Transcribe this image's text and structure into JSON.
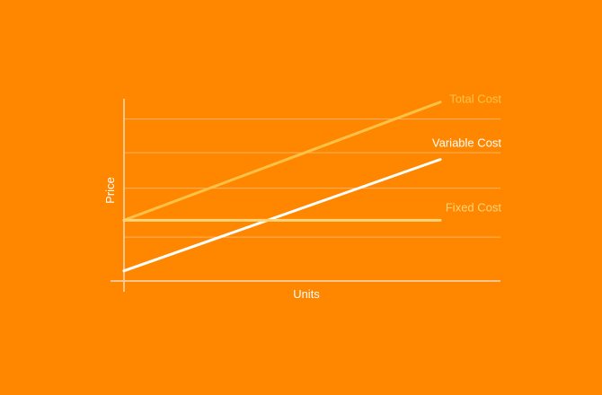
{
  "colors": {
    "background": "#FF8700",
    "grid": "#FFB266",
    "axis": "#FFC58F",
    "total_cost": "#FFC247",
    "variable_cost": "#FFFFFF",
    "fixed_cost": "#FFD479"
  },
  "chart_data": {
    "type": "line",
    "title": "",
    "xlabel": "Units",
    "ylabel": "Price",
    "xlim": [
      0,
      10
    ],
    "ylim": [
      0,
      10
    ],
    "grid": true,
    "gridlines_y": [
      2.6,
      5.5,
      7.6,
      9.6
    ],
    "series": [
      {
        "name": "Total Cost",
        "color": "#FFC247",
        "x": [
          0,
          10
        ],
        "y": [
          3.6,
          10.6
        ]
      },
      {
        "name": "Variable Cost",
        "color": "#FFFFFF",
        "x": [
          0,
          10
        ],
        "y": [
          0.6,
          7.2
        ]
      },
      {
        "name": "Fixed Cost",
        "color": "#FFD479",
        "x": [
          0,
          10
        ],
        "y": [
          3.6,
          3.6
        ]
      }
    ]
  }
}
